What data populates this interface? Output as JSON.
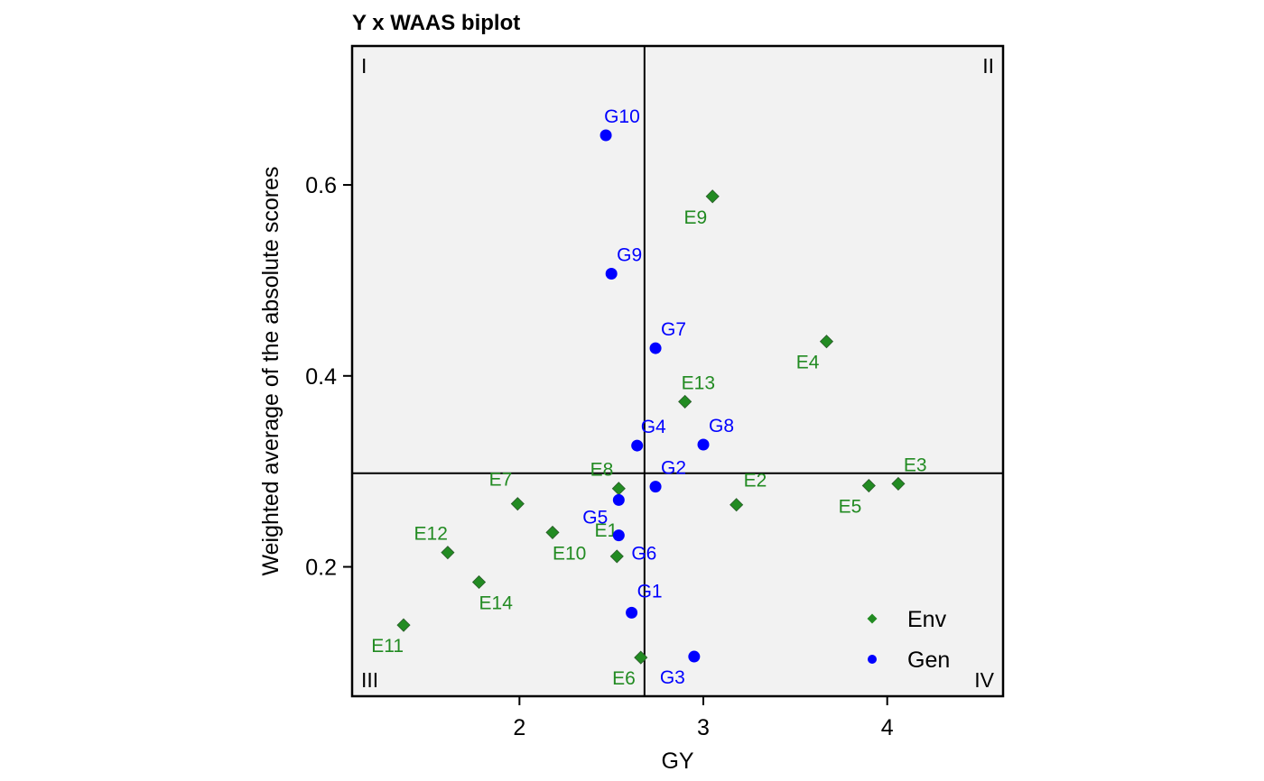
{
  "chart_data": {
    "type": "scatter",
    "title": "Y x WAAS biplot",
    "xlabel": "GY",
    "ylabel": "Weighted average of the absolute scores",
    "xlim": [
      1.09,
      4.63
    ],
    "ylim": [
      0.0645,
      0.7455
    ],
    "xticks": [
      2,
      3,
      4
    ],
    "xtick_labels": [
      "2",
      "3",
      "4"
    ],
    "yticks": [
      0.2,
      0.4,
      0.6
    ],
    "ytick_labels": [
      "0.2",
      "0.4",
      "0.6"
    ],
    "vline_x": 2.68,
    "hline_y": 0.298,
    "quadrants": [
      "I",
      "II",
      "III",
      "IV"
    ],
    "colors": {
      "env": "#228B22",
      "gen": "#0000FF",
      "panel": "#F2F2F2"
    },
    "legend": {
      "placement": "bottom-right",
      "entries": [
        "Env",
        "Gen"
      ]
    },
    "series": [
      {
        "name": "Env",
        "marker": "diamond",
        "points": [
          {
            "label": "E1",
            "x": 2.53,
            "y": 0.211
          },
          {
            "label": "E2",
            "x": 3.18,
            "y": 0.265
          },
          {
            "label": "E3",
            "x": 4.06,
            "y": 0.287
          },
          {
            "label": "E4",
            "x": 3.67,
            "y": 0.436
          },
          {
            "label": "E5",
            "x": 3.9,
            "y": 0.285
          },
          {
            "label": "E6",
            "x": 2.66,
            "y": 0.105
          },
          {
            "label": "E7",
            "x": 1.99,
            "y": 0.266
          },
          {
            "label": "E8",
            "x": 2.54,
            "y": 0.282
          },
          {
            "label": "E9",
            "x": 3.05,
            "y": 0.588
          },
          {
            "label": "E10",
            "x": 2.18,
            "y": 0.236
          },
          {
            "label": "E11",
            "x": 1.37,
            "y": 0.139
          },
          {
            "label": "E12",
            "x": 1.61,
            "y": 0.215
          },
          {
            "label": "E13",
            "x": 2.9,
            "y": 0.373
          },
          {
            "label": "E14",
            "x": 1.78,
            "y": 0.184
          }
        ]
      },
      {
        "name": "Gen",
        "marker": "circle",
        "points": [
          {
            "label": "G1",
            "x": 2.61,
            "y": 0.152
          },
          {
            "label": "G2",
            "x": 2.74,
            "y": 0.284
          },
          {
            "label": "G3",
            "x": 2.95,
            "y": 0.106
          },
          {
            "label": "G4",
            "x": 2.64,
            "y": 0.327
          },
          {
            "label": "G5",
            "x": 2.54,
            "y": 0.233
          },
          {
            "label": "G6",
            "x": 2.54,
            "y": 0.27
          },
          {
            "label": "G7",
            "x": 2.74,
            "y": 0.429
          },
          {
            "label": "G8",
            "x": 3.0,
            "y": 0.328
          },
          {
            "label": "G9",
            "x": 2.5,
            "y": 0.507
          },
          {
            "label": "G10",
            "x": 2.47,
            "y": 0.652
          }
        ]
      }
    ]
  }
}
